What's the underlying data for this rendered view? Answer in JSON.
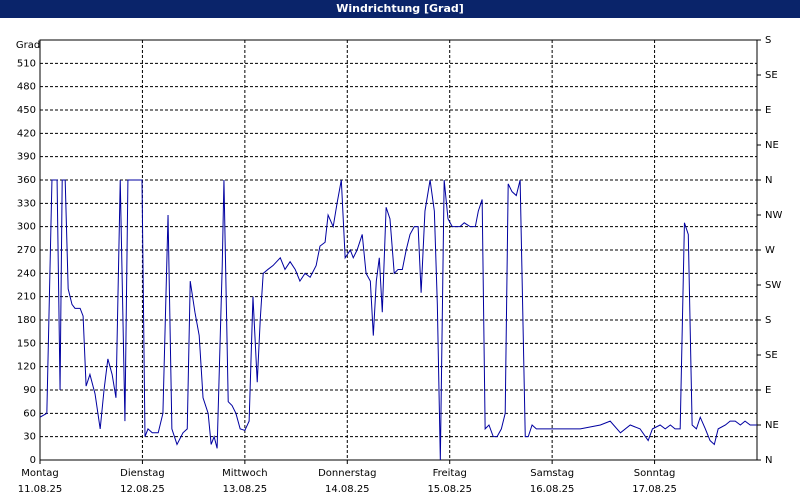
{
  "chart_data": {
    "type": "line",
    "title": "Windrichtung [Grad]",
    "ylabel": "Grad",
    "xlim": [
      0,
      168
    ],
    "xticks": [
      {
        "value": 0,
        "label": "Montag",
        "date": "11.08.25"
      },
      {
        "value": 24,
        "label": "Dienstag",
        "date": "12.08.25"
      },
      {
        "value": 48,
        "label": "Mittwoch",
        "date": "13.08.25"
      },
      {
        "value": 72,
        "label": "Donnerstag",
        "date": "14.08.25"
      },
      {
        "value": 96,
        "label": "Freitag",
        "date": "15.08.25"
      },
      {
        "value": 120,
        "label": "Samstag",
        "date": "16.08.25"
      },
      {
        "value": 144,
        "label": "Sonntag",
        "date": "17.08.25"
      }
    ],
    "ylim": [
      0,
      540
    ],
    "yticks": [
      0,
      30,
      60,
      90,
      120,
      150,
      180,
      210,
      240,
      270,
      300,
      330,
      360,
      390,
      420,
      450,
      480,
      510
    ],
    "y2lim": [
      0,
      540
    ],
    "y2ticks": [
      {
        "value": 0,
        "label": "N"
      },
      {
        "value": 45,
        "label": "NE"
      },
      {
        "value": 90,
        "label": "E"
      },
      {
        "value": 135,
        "label": "SE"
      },
      {
        "value": 180,
        "label": "S"
      },
      {
        "value": 225,
        "label": "SW"
      },
      {
        "value": 270,
        "label": "W"
      },
      {
        "value": 315,
        "label": "NW"
      },
      {
        "value": 360,
        "label": "N"
      },
      {
        "value": 405,
        "label": "NE"
      },
      {
        "value": 450,
        "label": "E"
      },
      {
        "value": 495,
        "label": "SE"
      },
      {
        "value": 540,
        "label": "S"
      }
    ],
    "grid": true,
    "x": [
      0,
      1.6,
      2.8,
      4.0,
      4.7,
      5.2,
      5.9,
      6.6,
      7.5,
      8.2,
      9.4,
      10.1,
      10.8,
      11.7,
      12.9,
      14.1,
      15.0,
      15.9,
      16.9,
      17.8,
      18.8,
      19.9,
      20.6,
      21.3,
      22.7,
      23.9,
      24.6,
      25.3,
      26.3,
      27.7,
      28.8,
      30.0,
      30.9,
      32.1,
      33.5,
      34.5,
      35.2,
      36.3,
      37.3,
      38.2,
      39.4,
      40.1,
      40.8,
      41.5,
      42.7,
      43.1,
      44.1,
      45.0,
      45.9,
      46.9,
      48.0,
      49.0,
      49.9,
      50.9,
      51.6,
      52.3,
      53.4,
      54.6,
      56.3,
      57.4,
      58.6,
      59.8,
      60.9,
      62.1,
      63.3,
      64.7,
      65.6,
      66.8,
      67.5,
      68.7,
      69.6,
      70.6,
      71.5,
      72.7,
      73.4,
      74.3,
      75.5,
      76.4,
      77.4,
      78.1,
      78.8,
      79.5,
      80.2,
      81.1,
      82.0,
      83.0,
      83.9,
      84.9,
      85.8,
      86.7,
      87.7,
      88.6,
      89.3,
      90.2,
      91.4,
      92.4,
      93.1,
      93.8,
      94.7,
      95.6,
      96.6,
      97.5,
      98.4,
      99.4,
      100.8,
      102.0,
      102.7,
      103.6,
      104.3,
      105.2,
      106.2,
      107.1,
      108.1,
      109.0,
      109.7,
      110.6,
      111.6,
      112.5,
      113.7,
      114.4,
      115.3,
      116.3,
      117.2,
      121.9,
      124.2,
      126.6,
      131.3,
      133.6,
      136.0,
      138.3,
      140.6,
      142.5,
      143.5,
      145.3,
      146.5,
      147.7,
      148.8,
      150.0,
      151.0,
      151.9,
      152.8,
      153.8,
      154.7,
      155.9,
      157.0,
      158.0,
      158.9,
      160.6,
      161.7,
      162.9,
      164.1,
      165.2,
      166.4,
      168
    ],
    "series": [
      {
        "color": "#0000a0",
        "values": [
          55,
          60,
          360,
          360,
          90,
          360,
          360,
          220,
          200,
          195,
          195,
          185,
          95,
          110,
          85,
          40,
          90,
          130,
          110,
          80,
          360,
          50,
          360,
          360,
          360,
          360,
          30,
          40,
          35,
          35,
          60,
          315,
          40,
          20,
          35,
          40,
          230,
          190,
          160,
          80,
          60,
          20,
          30,
          15,
          250,
          360,
          75,
          70,
          60,
          40,
          38,
          50,
          210,
          100,
          180,
          240,
          245,
          250,
          260,
          245,
          255,
          245,
          230,
          240,
          235,
          250,
          275,
          280,
          315,
          300,
          330,
          360,
          260,
          270,
          260,
          270,
          290,
          240,
          230,
          160,
          230,
          260,
          190,
          325,
          310,
          240,
          245,
          245,
          270,
          290,
          300,
          300,
          215,
          320,
          360,
          320,
          200,
          0,
          360,
          310,
          300,
          300,
          300,
          305,
          300,
          300,
          320,
          335,
          40,
          45,
          30,
          30,
          40,
          60,
          355,
          345,
          340,
          360,
          30,
          30,
          45,
          40,
          40,
          40,
          40,
          40,
          45,
          50,
          35,
          45,
          40,
          25,
          40,
          45,
          40,
          45,
          40,
          40,
          305,
          290,
          45,
          40,
          55,
          40,
          25,
          20,
          40,
          45,
          50,
          50,
          45,
          50,
          45,
          45
        ]
      }
    ]
  }
}
